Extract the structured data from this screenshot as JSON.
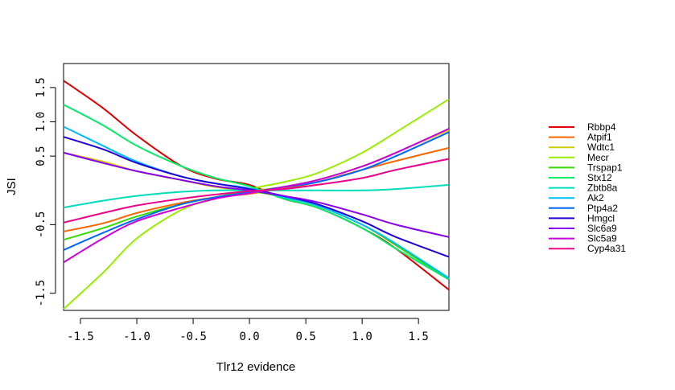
{
  "chart_data": {
    "type": "line",
    "xlabel": "Tlr12 evidence",
    "ylabel": "JSI",
    "xlim": [
      -1.65,
      1.77
    ],
    "ylim": [
      -1.75,
      1.85
    ],
    "x_ticks": [
      -1.5,
      -1.0,
      -0.5,
      0.0,
      0.5,
      1.0,
      1.5
    ],
    "x_tick_labels": [
      "-1.5",
      "-1.0",
      "-0.5",
      "0.0",
      "0.5",
      "1.0",
      "1.5"
    ],
    "y_ticks": [
      1.5,
      1.0,
      0.5,
      -0.5,
      -1.5
    ],
    "y_tick_labels": [
      "1.5",
      "1.0",
      "0.5",
      "-0.5",
      "-1.5"
    ],
    "legend_position": "right",
    "x": [
      -1.65,
      -1.3,
      -1.0,
      -0.6,
      -0.3,
      0.0,
      0.3,
      0.6,
      1.0,
      1.3,
      1.77
    ],
    "series": [
      {
        "name": "Rbbp4",
        "color": "#e00000",
        "values": [
          1.6,
          1.2,
          0.8,
          0.35,
          0.17,
          0.08,
          -0.12,
          -0.25,
          -0.55,
          -0.85,
          -1.45
        ]
      },
      {
        "name": "Atpif1",
        "color": "#ff6600",
        "values": [
          -0.6,
          -0.48,
          -0.33,
          -0.18,
          -0.1,
          -0.05,
          0.03,
          0.12,
          0.3,
          0.43,
          0.62
        ]
      },
      {
        "name": "Wdtc1",
        "color": "#cccc00",
        "values": [
          0.55,
          0.42,
          0.28,
          0.15,
          0.05,
          0.0,
          0.05,
          0.15,
          0.35,
          0.55,
          0.88
        ]
      },
      {
        "name": "Mecr",
        "color": "#99ee00",
        "values": [
          -1.73,
          -1.2,
          -0.7,
          -0.28,
          -0.12,
          0.02,
          0.12,
          0.25,
          0.55,
          0.85,
          1.33
        ]
      },
      {
        "name": "Trspap1",
        "color": "#33dd00",
        "values": [
          -0.72,
          -0.55,
          -0.38,
          -0.2,
          -0.1,
          -0.02,
          -0.1,
          -0.22,
          -0.5,
          -0.8,
          -1.3
        ]
      },
      {
        "name": "Stx12",
        "color": "#00ee66",
        "values": [
          1.25,
          0.95,
          0.65,
          0.35,
          0.18,
          0.06,
          -0.12,
          -0.25,
          -0.55,
          -0.85,
          -1.3
        ]
      },
      {
        "name": "Zbtb8a",
        "color": "#00ddbb",
        "values": [
          -0.25,
          -0.15,
          -0.08,
          -0.02,
          0.0,
          0.0,
          0.0,
          0.0,
          0.0,
          0.02,
          0.08
        ]
      },
      {
        "name": "Ak2",
        "color": "#00bbff",
        "values": [
          0.93,
          0.65,
          0.42,
          0.2,
          0.1,
          0.03,
          -0.1,
          -0.22,
          -0.5,
          -0.78,
          -1.28
        ]
      },
      {
        "name": "Ptp4a2",
        "color": "#0066ff",
        "values": [
          -0.87,
          -0.62,
          -0.42,
          -0.2,
          -0.1,
          -0.03,
          0.05,
          0.12,
          0.3,
          0.5,
          0.85
        ]
      },
      {
        "name": "Hmgcl",
        "color": "#2200dd",
        "values": [
          0.78,
          0.6,
          0.4,
          0.2,
          0.1,
          0.02,
          -0.08,
          -0.2,
          -0.45,
          -0.68,
          -0.97
        ]
      },
      {
        "name": "Slc6a9",
        "color": "#8800ee",
        "values": [
          0.55,
          0.4,
          0.28,
          0.15,
          0.06,
          0.0,
          -0.08,
          -0.17,
          -0.35,
          -0.5,
          -0.68
        ]
      },
      {
        "name": "Slc5a9",
        "color": "#cc00dd",
        "values": [
          -1.05,
          -0.7,
          -0.45,
          -0.25,
          -0.12,
          -0.04,
          0.05,
          0.15,
          0.35,
          0.55,
          0.9
        ]
      },
      {
        "name": "Cyp4a31",
        "color": "#ee0088",
        "values": [
          -0.47,
          -0.33,
          -0.22,
          -0.12,
          -0.06,
          -0.01,
          0.02,
          0.08,
          0.18,
          0.3,
          0.46
        ]
      }
    ]
  }
}
